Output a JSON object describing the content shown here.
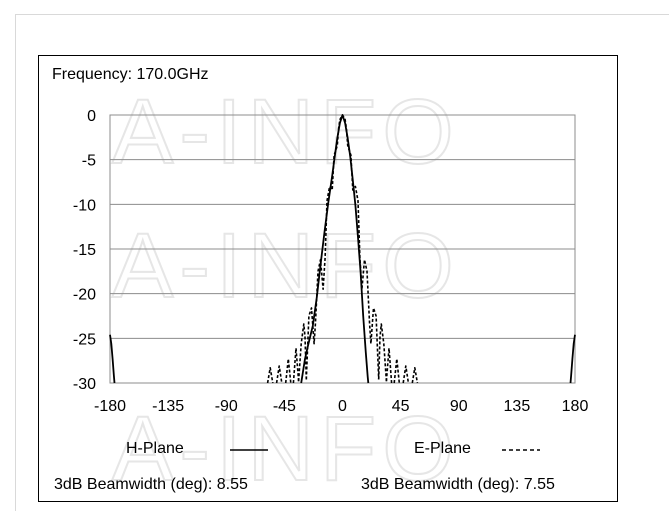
{
  "chart_data": {
    "type": "line",
    "title": "Frequency: 170.0GHz",
    "xlim": [
      -180,
      180
    ],
    "ylim": [
      -30,
      0
    ],
    "xticks": [
      -180,
      -135,
      -90,
      -45,
      0,
      45,
      90,
      135,
      180
    ],
    "yticks": [
      0,
      -5,
      -10,
      -15,
      -20,
      -25,
      -30
    ],
    "grid": "horizontal",
    "watermark": "A-INFO",
    "series": [
      {
        "name": "H-Plane",
        "style": "solid",
        "segments": [
          [
            [
              -180,
              -24.6
            ],
            [
              -179,
              -25.6
            ],
            [
              -178,
              -27.3
            ],
            [
              -177,
              -29.2
            ],
            [
              -176.5,
              -30
            ]
          ],
          [
            [
              -32,
              -30
            ],
            [
              -29,
              -27.3
            ],
            [
              -27,
              -26
            ],
            [
              -25,
              -24.8
            ],
            [
              -23,
              -23.6
            ],
            [
              -20,
              -20.5
            ],
            [
              -17,
              -16.8
            ],
            [
              -14,
              -13.2
            ],
            [
              -11,
              -9.8
            ],
            [
              -8,
              -6.8
            ],
            [
              -6,
              -4.6
            ],
            [
              -4,
              -2.6
            ],
            [
              -2,
              -0.9
            ],
            [
              0,
              0
            ],
            [
              2,
              -0.9
            ],
            [
              4,
              -2.6
            ],
            [
              6,
              -4.7
            ],
            [
              8,
              -7.3
            ],
            [
              10,
              -10.1
            ],
            [
              12,
              -13.7
            ],
            [
              14,
              -17.6
            ],
            [
              16,
              -22.5
            ],
            [
              18,
              -26.6
            ],
            [
              19.5,
              -29.3
            ],
            [
              20,
              -30
            ]
          ],
          [
            [
              176.5,
              -30
            ],
            [
              177,
              -29.2
            ],
            [
              178,
              -27.3
            ],
            [
              179,
              -25.6
            ],
            [
              180,
              -24.6
            ]
          ]
        ]
      },
      {
        "name": "E-Plane",
        "style": "dashed",
        "segments": [
          [
            [
              -58,
              -30
            ],
            [
              -56,
              -28.3
            ],
            [
              -54,
              -30
            ]
          ],
          [
            [
              -51,
              -30
            ],
            [
              -49,
              -28.1
            ],
            [
              -47,
              -30
            ]
          ],
          [
            [
              -44,
              -30
            ],
            [
              -42,
              -27.3
            ],
            [
              -40,
              -30
            ]
          ],
          [
            [
              -38,
              -30
            ],
            [
              -36,
              -26.1
            ],
            [
              -34,
              -29.8
            ]
          ],
          [
            [
              -34,
              -29.8
            ],
            [
              -32,
              -25.6
            ],
            [
              -30,
              -23.4
            ],
            [
              -29,
              -24.8
            ],
            [
              -28,
              -29.6
            ]
          ],
          [
            [
              -28,
              -29.6
            ],
            [
              -26,
              -22.5
            ],
            [
              -24,
              -21.6
            ],
            [
              -22,
              -25.6
            ],
            [
              -21,
              -23.4
            ],
            [
              -19,
              -17.5
            ],
            [
              -17,
              -16.2
            ],
            [
              -15,
              -19.5
            ],
            [
              -13.5,
              -16
            ],
            [
              -12,
              -9.6
            ],
            [
              -10,
              -8
            ],
            [
              -8,
              -8.4
            ],
            [
              -6.5,
              -4.5
            ],
            [
              -5,
              -3.9
            ],
            [
              -4,
              -3.4
            ],
            [
              -3,
              -1.5
            ],
            [
              -2,
              -0.5
            ],
            [
              0,
              0
            ],
            [
              2,
              -0.5
            ],
            [
              3,
              -1.5
            ],
            [
              4,
              -3.4
            ],
            [
              5,
              -3.9
            ],
            [
              6.5,
              -4.5
            ],
            [
              8,
              -8.4
            ],
            [
              10,
              -8
            ],
            [
              12,
              -9.6
            ],
            [
              13.5,
              -16
            ],
            [
              15,
              -19.5
            ],
            [
              17,
              -16.2
            ],
            [
              19,
              -17.5
            ],
            [
              21,
              -23.4
            ],
            [
              22,
              -25.6
            ],
            [
              24,
              -21.6
            ],
            [
              26,
              -22.5
            ],
            [
              28,
              -29.6
            ]
          ],
          [
            [
              28,
              -29.6
            ],
            [
              29,
              -24.8
            ],
            [
              30,
              -23.4
            ],
            [
              32,
              -25.6
            ],
            [
              34,
              -29.8
            ]
          ],
          [
            [
              34,
              -29.8
            ],
            [
              36,
              -26.1
            ],
            [
              38,
              -30
            ]
          ],
          [
            [
              40,
              -30
            ],
            [
              42,
              -27.3
            ],
            [
              44,
              -30
            ]
          ],
          [
            [
              47,
              -30
            ],
            [
              49,
              -28.1
            ],
            [
              51,
              -30
            ]
          ],
          [
            [
              54,
              -30
            ],
            [
              56,
              -28.3
            ],
            [
              58,
              -30
            ]
          ]
        ]
      }
    ],
    "legend": [
      {
        "label": "H-Plane",
        "style": "solid"
      },
      {
        "label": "E-Plane",
        "style": "dashed"
      }
    ],
    "annotations": [
      "3dB Beamwidth (deg): 8.55",
      "3dB Beamwidth (deg): 7.55"
    ]
  }
}
